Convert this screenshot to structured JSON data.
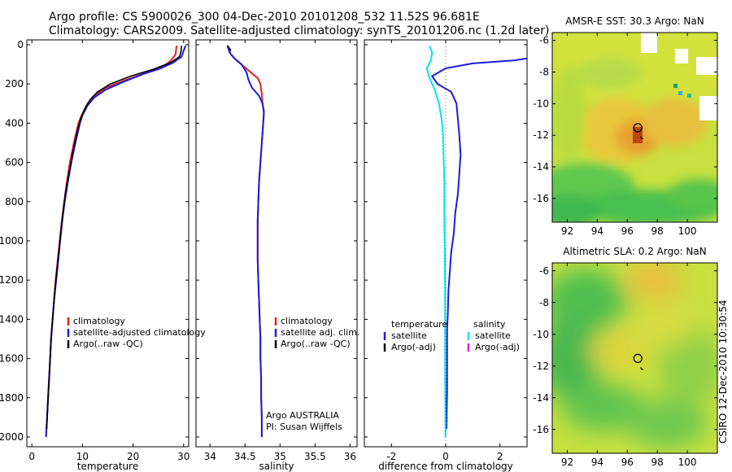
{
  "header": {
    "line1": "Argo profile: CS 5900026_300 04-Dec-2010 20101208_532 11.52S 96.681E",
    "line2": "Climatology: CARS2009. Satellite-adjusted climatology: synTS_20101206.nc (1.2d later)"
  },
  "footer_vertical": "CSIRO 12-Dec-2010 10:30:54",
  "colors": {
    "red": "#e8201c",
    "blue": "#1c1cd8",
    "black": "#000000",
    "cyan": "#00e8e8",
    "magenta": "#e020e0"
  },
  "chart_data": [
    {
      "type": "line",
      "xlabel": "temperature",
      "ylabel": "",
      "xlim": [
        -1,
        31
      ],
      "ylim": [
        0,
        2050
      ],
      "y_reversed": true,
      "xticks": [
        0,
        10,
        20,
        30
      ],
      "yticks": [
        0,
        200,
        400,
        600,
        800,
        1000,
        1200,
        1400,
        1600,
        1800,
        2000
      ],
      "legend": [
        "climatology",
        "satellite-adjusted climatology",
        "Argo(..raw -QC)"
      ],
      "series": [
        {
          "name": "climatology",
          "color": "red",
          "points": [
            [
              28.6,
              5
            ],
            [
              28.4,
              50
            ],
            [
              27.5,
              80
            ],
            [
              26,
              110
            ],
            [
              23,
              140
            ],
            [
              18.5,
              180
            ],
            [
              14.5,
              220
            ],
            [
              12.3,
              260
            ],
            [
              11,
              300
            ],
            [
              9.8,
              360
            ],
            [
              9.2,
              400
            ],
            [
              8.3,
              500
            ],
            [
              7.5,
              600
            ],
            [
              6.9,
              700
            ],
            [
              6.4,
              800
            ],
            [
              5.9,
              900
            ],
            [
              5.5,
              1000
            ],
            [
              5.1,
              1100
            ],
            [
              4.7,
              1200
            ],
            [
              4.4,
              1300
            ],
            [
              4.1,
              1400
            ],
            [
              3.8,
              1500
            ],
            [
              3.6,
              1600
            ],
            [
              3.4,
              1700
            ],
            [
              3.2,
              1800
            ],
            [
              3.0,
              1900
            ],
            [
              2.8,
              2000
            ]
          ]
        },
        {
          "name": "satellite-adjusted climatology",
          "color": "blue",
          "points": [
            [
              30.4,
              5
            ],
            [
              30.0,
              30
            ],
            [
              29.6,
              60
            ],
            [
              28,
              90
            ],
            [
              25.5,
              120
            ],
            [
              22,
              150
            ],
            [
              18,
              190
            ],
            [
              14.5,
              230
            ],
            [
              12.3,
              270
            ],
            [
              11,
              310
            ],
            [
              10,
              360
            ],
            [
              9.5,
              400
            ],
            [
              8.6,
              500
            ],
            [
              7.8,
              600
            ],
            [
              7.1,
              700
            ],
            [
              6.5,
              800
            ],
            [
              6.0,
              900
            ],
            [
              5.6,
              1000
            ],
            [
              5.2,
              1100
            ],
            [
              4.8,
              1200
            ],
            [
              4.4,
              1300
            ],
            [
              4.1,
              1400
            ],
            [
              3.8,
              1500
            ],
            [
              3.6,
              1600
            ],
            [
              3.4,
              1700
            ],
            [
              3.2,
              1800
            ],
            [
              3.0,
              1900
            ],
            [
              2.8,
              2000
            ]
          ]
        },
        {
          "name": "Argo(..raw -QC)",
          "color": "black",
          "points": [
            [
              29.6,
              5
            ],
            [
              29.5,
              30
            ],
            [
              29.2,
              60
            ],
            [
              27.5,
              90
            ],
            [
              24,
              125
            ],
            [
              19.5,
              160
            ],
            [
              15.5,
              200
            ],
            [
              13,
              240
            ],
            [
              11.5,
              280
            ],
            [
              10.4,
              330
            ],
            [
              9.6,
              380
            ],
            [
              8.8,
              460
            ],
            [
              8.0,
              560
            ],
            [
              7.3,
              660
            ],
            [
              6.6,
              760
            ],
            [
              6.1,
              860
            ],
            [
              5.7,
              960
            ],
            [
              5.3,
              1060
            ],
            [
              4.9,
              1160
            ],
            [
              4.5,
              1260
            ],
            [
              4.2,
              1360
            ],
            [
              3.9,
              1460
            ],
            [
              3.7,
              1560
            ],
            [
              3.5,
              1660
            ],
            [
              3.3,
              1760
            ],
            [
              3.1,
              1860
            ],
            [
              2.9,
              1960
            ]
          ]
        }
      ]
    },
    {
      "type": "line",
      "xlabel": "salinity",
      "ylabel": "",
      "xlim": [
        33.8,
        36.1
      ],
      "ylim": [
        0,
        2050
      ],
      "y_reversed": true,
      "xticks": [
        34,
        34.5,
        35,
        35.5,
        36
      ],
      "yticks": [
        0,
        200,
        400,
        600,
        800,
        1000,
        1200,
        1400,
        1600,
        1800,
        2000
      ],
      "tick_labels_x": [
        "34",
        "34.5",
        "35",
        "35.5",
        "36"
      ],
      "legend": [
        "climatology",
        "satellite adj. clim.",
        "Argo(..raw -QC)"
      ],
      "annotations": [
        "Argo AUSTRALIA",
        "PI: Susan Wijffels"
      ],
      "series": [
        {
          "name": "climatology",
          "color": "red",
          "points": [
            [
              34.25,
              5
            ],
            [
              34.3,
              50
            ],
            [
              34.38,
              80
            ],
            [
              34.48,
              110
            ],
            [
              34.58,
              140
            ],
            [
              34.68,
              170
            ],
            [
              34.72,
              200
            ],
            [
              34.74,
              250
            ],
            [
              34.75,
              300
            ],
            [
              34.77,
              350
            ],
            [
              34.76,
              400
            ],
            [
              34.74,
              500
            ],
            [
              34.72,
              600
            ],
            [
              34.7,
              700
            ],
            [
              34.69,
              800
            ],
            [
              34.68,
              900
            ],
            [
              34.68,
              1000
            ],
            [
              34.68,
              1100
            ],
            [
              34.69,
              1200
            ],
            [
              34.7,
              1300
            ],
            [
              34.71,
              1400
            ],
            [
              34.72,
              1500
            ],
            [
              34.72,
              1600
            ],
            [
              34.73,
              1700
            ],
            [
              34.73,
              1800
            ],
            [
              34.74,
              1900
            ],
            [
              34.74,
              2000
            ]
          ]
        },
        {
          "name": "satellite adj. clim.",
          "color": "blue",
          "points": [
            [
              34.25,
              5
            ],
            [
              34.28,
              40
            ],
            [
              34.35,
              70
            ],
            [
              34.45,
              100
            ],
            [
              34.52,
              140
            ],
            [
              34.55,
              180
            ],
            [
              34.6,
              220
            ],
            [
              34.7,
              260
            ],
            [
              34.75,
              300
            ],
            [
              34.77,
              340
            ],
            [
              34.76,
              400
            ],
            [
              34.74,
              500
            ],
            [
              34.72,
              600
            ],
            [
              34.7,
              700
            ],
            [
              34.69,
              800
            ],
            [
              34.68,
              900
            ],
            [
              34.68,
              1000
            ],
            [
              34.68,
              1100
            ],
            [
              34.69,
              1200
            ],
            [
              34.7,
              1300
            ],
            [
              34.71,
              1400
            ],
            [
              34.72,
              1500
            ],
            [
              34.72,
              1600
            ],
            [
              34.73,
              1700
            ],
            [
              34.73,
              1800
            ],
            [
              34.74,
              1900
            ],
            [
              34.74,
              2000
            ]
          ]
        },
        {
          "name": "Argo(..raw -QC)",
          "color": "black",
          "points": [
            [
              34.25,
              5
            ],
            [
              34.3,
              30
            ]
          ]
        }
      ]
    },
    {
      "type": "line",
      "xlabel": "difference from climatology",
      "ylabel": "",
      "xlim": [
        -3,
        3
      ],
      "ylim": [
        0,
        2050
      ],
      "y_reversed": true,
      "xticks": [
        -2,
        0,
        2
      ],
      "yticks": [
        0,
        200,
        400,
        600,
        800,
        1000,
        1200,
        1400,
        1600,
        1800,
        2000
      ],
      "legend_left_title": "temperature",
      "legend_right_title": "salinity",
      "legend": [
        "satellite",
        "Argo(-adj)",
        "satellite",
        "Argo(-adj)"
      ],
      "series": [
        {
          "name": "satellite",
          "color": "blue",
          "points": [
            [
              3.0,
              70
            ],
            [
              2.5,
              80
            ],
            [
              1.0,
              95
            ],
            [
              0,
              120
            ],
            [
              -0.5,
              160
            ],
            [
              -0.3,
              200
            ],
            [
              0.2,
              240
            ],
            [
              0.4,
              300
            ],
            [
              0.45,
              380
            ],
            [
              0.5,
              460
            ],
            [
              0.55,
              560
            ],
            [
              0.5,
              660
            ],
            [
              0.45,
              760
            ],
            [
              0.35,
              860
            ],
            [
              0.3,
              960
            ],
            [
              0.2,
              1060
            ],
            [
              0.15,
              1160
            ],
            [
              0.1,
              1260
            ],
            [
              0.08,
              1360
            ],
            [
              0.05,
              1460
            ],
            [
              0.05,
              1560
            ],
            [
              0.05,
              1660
            ],
            [
              0.05,
              1760
            ],
            [
              0.04,
              1860
            ],
            [
              0.03,
              1960
            ]
          ]
        },
        {
          "name": "satellite",
          "color": "cyan",
          "points": [
            [
              -0.6,
              5
            ],
            [
              -0.5,
              40
            ],
            [
              -0.55,
              80
            ],
            [
              -0.7,
              120
            ],
            [
              -0.6,
              170
            ],
            [
              -0.4,
              230
            ],
            [
              -0.25,
              300
            ],
            [
              -0.15,
              380
            ],
            [
              -0.1,
              460
            ],
            [
              -0.08,
              560
            ],
            [
              -0.05,
              700
            ],
            [
              -0.05,
              900
            ],
            [
              -0.03,
              1100
            ],
            [
              -0.02,
              1300
            ],
            [
              -0.02,
              1500
            ],
            [
              -0.02,
              1700
            ],
            [
              -0.01,
              1900
            ],
            [
              -0.01,
              2000
            ]
          ]
        }
      ]
    },
    {
      "type": "heatmap",
      "title": "AMSR-E SST: 30.3 Argo: NaN",
      "xlim": [
        91,
        102
      ],
      "ylim": [
        -17.5,
        -5.5
      ],
      "xticks": [
        92,
        94,
        96,
        98,
        100
      ],
      "yticks": [
        -6,
        -8,
        -10,
        -12,
        -14,
        -16
      ],
      "marker": [
        96.7,
        -11.52
      ],
      "annotations": []
    },
    {
      "type": "heatmap",
      "title": "Altimetric SLA: 0.2 Argo: NaN",
      "xlim": [
        91,
        102
      ],
      "ylim": [
        -17.5,
        -5.5
      ],
      "xticks": [
        92,
        94,
        96,
        98,
        100
      ],
      "yticks": [
        -6,
        -8,
        -10,
        -12,
        -14,
        -16
      ],
      "marker": [
        96.7,
        -11.52
      ],
      "annotations": []
    }
  ]
}
